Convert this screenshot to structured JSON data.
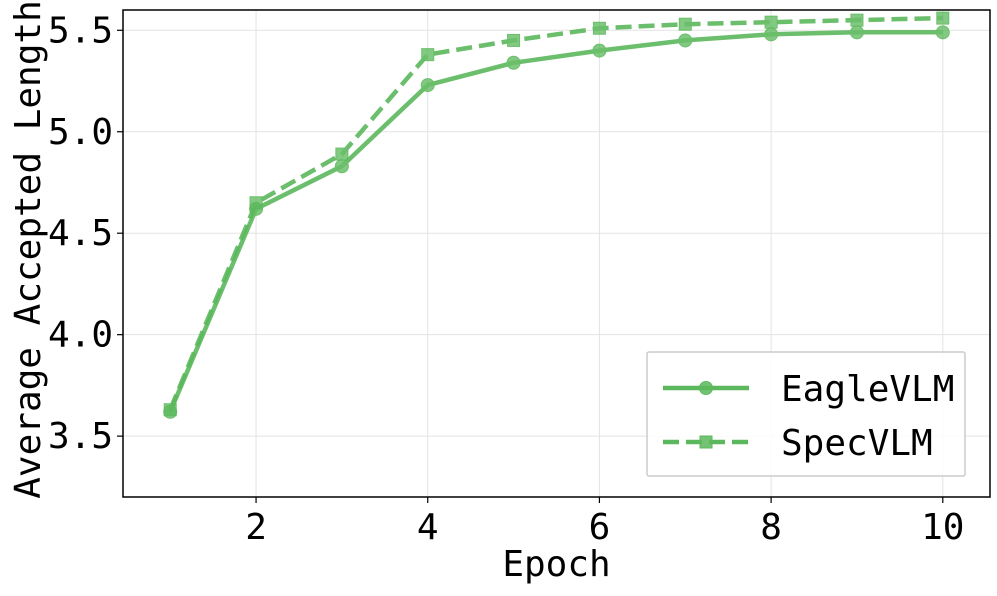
{
  "chart_data": {
    "type": "line",
    "title": "",
    "xlabel": "Epoch",
    "ylabel": "Average Accepted Length",
    "xlim": [
      0.45,
      10.55
    ],
    "ylim": [
      3.2,
      5.6
    ],
    "xticks": [
      2,
      4,
      6,
      8,
      10
    ],
    "xtick_labels": [
      "2",
      "4",
      "6",
      "8",
      "10"
    ],
    "yticks": [
      3.5,
      4.0,
      4.5,
      5.0,
      5.5
    ],
    "ytick_labels": [
      "3.5",
      "4.0",
      "4.5",
      "5.0",
      "5.5"
    ],
    "grid": true,
    "legend_position": "lower-right",
    "x": [
      1,
      2,
      3,
      4,
      5,
      6,
      7,
      8,
      9,
      10
    ],
    "series": [
      {
        "name": "EagleVLM",
        "values": [
          3.62,
          4.62,
          4.83,
          5.23,
          5.34,
          5.4,
          5.45,
          5.48,
          5.49,
          5.49
        ],
        "color": "#5cb85c",
        "line_style": "solid",
        "marker": "circle"
      },
      {
        "name": "SpecVLM",
        "values": [
          3.63,
          4.65,
          4.89,
          5.38,
          5.45,
          5.51,
          5.53,
          5.54,
          5.55,
          5.56
        ],
        "color": "#5cb85c",
        "line_style": "dashed",
        "marker": "square"
      }
    ]
  }
}
